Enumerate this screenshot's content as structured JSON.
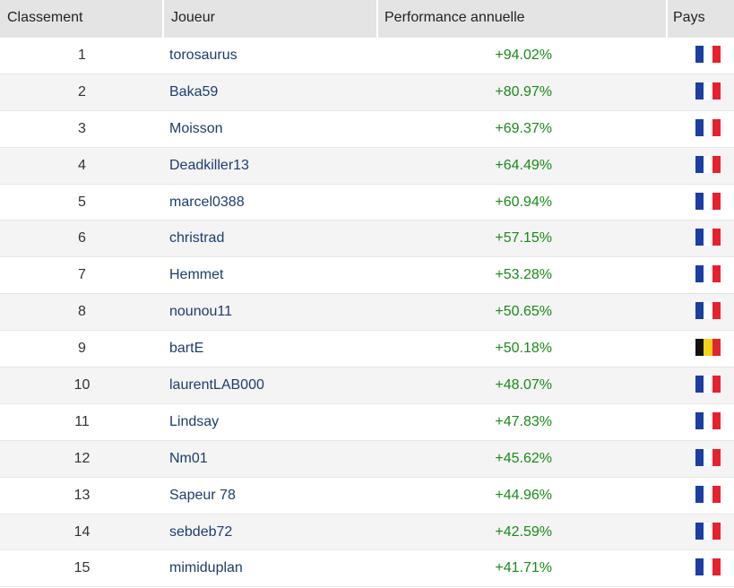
{
  "table": {
    "header": [
      "Classement",
      "Joueur",
      "Performance annuelle",
      "Pays"
    ],
    "rows": [
      {
        "rank": 1,
        "player": "torosaurus",
        "performance": "+94.02%",
        "flag": "FR"
      },
      {
        "rank": 2,
        "player": "Baka59",
        "performance": "+80.97%",
        "flag": "FR"
      },
      {
        "rank": 3,
        "player": "Moisson",
        "performance": "+69.37%",
        "flag": "FR"
      },
      {
        "rank": 4,
        "player": "Deadkiller13",
        "performance": "+64.49%",
        "flag": "FR"
      },
      {
        "rank": 5,
        "player": "marcel0388",
        "performance": "+60.94%",
        "flag": "FR"
      },
      {
        "rank": 6,
        "player": "christrad",
        "performance": "+57.15%",
        "flag": "FR"
      },
      {
        "rank": 7,
        "player": "Hemmet",
        "performance": "+53.28%",
        "flag": "FR"
      },
      {
        "rank": 8,
        "player": "nounou11",
        "performance": "+50.65%",
        "flag": "FR"
      },
      {
        "rank": 9,
        "player": "bartE",
        "performance": "+50.18%",
        "flag": "BE"
      },
      {
        "rank": 10,
        "player": "laurentLAB000",
        "performance": "+48.07%",
        "flag": "FR"
      },
      {
        "rank": 11,
        "player": "Lindsay",
        "performance": "+47.83%",
        "flag": "FR"
      },
      {
        "rank": 12,
        "player": "Nm01",
        "performance": "+45.62%",
        "flag": "FR"
      },
      {
        "rank": 13,
        "player": "Sapeur 78",
        "performance": "+44.96%",
        "flag": "FR"
      },
      {
        "rank": 14,
        "player": "sebdeb72",
        "performance": "+42.59%",
        "flag": "FR"
      },
      {
        "rank": 15,
        "player": "mimiduplan",
        "performance": "+41.71%",
        "flag": "FR"
      }
    ]
  }
}
